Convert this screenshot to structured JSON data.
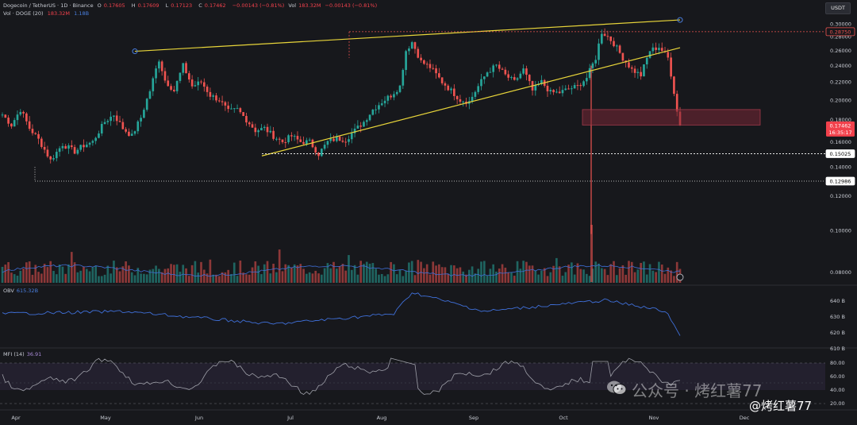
{
  "header": {
    "symbol": "Dogecoin / TetherUS · 1D · Binance",
    "o_label": "O",
    "o_val": "0.17605",
    "h_label": "H",
    "h_val": "0.17609",
    "l_label": "L",
    "l_val": "0.17123",
    "c_label": "C",
    "c_val": "0.17462",
    "change": "−0.00143 (−0.81%)",
    "vol_label": "Vol",
    "vol_val": "183.32M",
    "vol_change": "−0.00143 (−0.81%)",
    "vol_ind": "Vol · DOGE (20)",
    "vol_ind_v1": "183.32M",
    "vol_ind_v2": "1.18B",
    "currency_button": "USDT"
  },
  "colors": {
    "up": "#26a69a",
    "down": "#ef5350",
    "trend": "#e8d53a",
    "sma": "#3f6fd8",
    "obv": "#3f6fd8",
    "mfi": "#9e9fa8",
    "zone": "#6b2a35"
  },
  "chart_data": {
    "type": "candlestick",
    "x_axis_labels": [
      "Apr",
      "May",
      "Jun",
      "Jul",
      "Aug",
      "Sep",
      "Oct",
      "Nov",
      "Dec"
    ],
    "y_tick_labels": [
      "0.30000",
      "0.28000",
      "0.26000",
      "0.24000",
      "0.22000",
      "0.20000",
      "0.18000",
      "0.16000",
      "0.14000",
      "0.12000",
      "0.10000",
      "0.08000"
    ],
    "y_scale": "log",
    "ylim": [
      0.075,
      0.31
    ],
    "price_tags": {
      "top_dotted": "0.28750",
      "current": "0.17462",
      "countdown": "16:35:17",
      "support1": "0.15025",
      "support2": "0.12986"
    },
    "trendlines_description": "rising wedge: upper line from ~0.259 (May) to ~0.306 (Nov); lower line from ~0.148 (Jun) to ~0.264 (Nov)",
    "resistance_zone": [
      0.175,
      0.19
    ],
    "last_close": 0.17462,
    "obv": {
      "label": "OBV",
      "value": "615.32B",
      "ticks": [
        "640 B",
        "630 B",
        "620 B",
        "610 B"
      ]
    },
    "mfi": {
      "label": "MFI (14)",
      "value": "36.91",
      "ticks": [
        "80.00",
        "60.00",
        "40.00",
        "20.00"
      ]
    }
  },
  "watermark": {
    "line1": "公众号 · 烤红薯77",
    "line2": "@烤红薯77"
  }
}
